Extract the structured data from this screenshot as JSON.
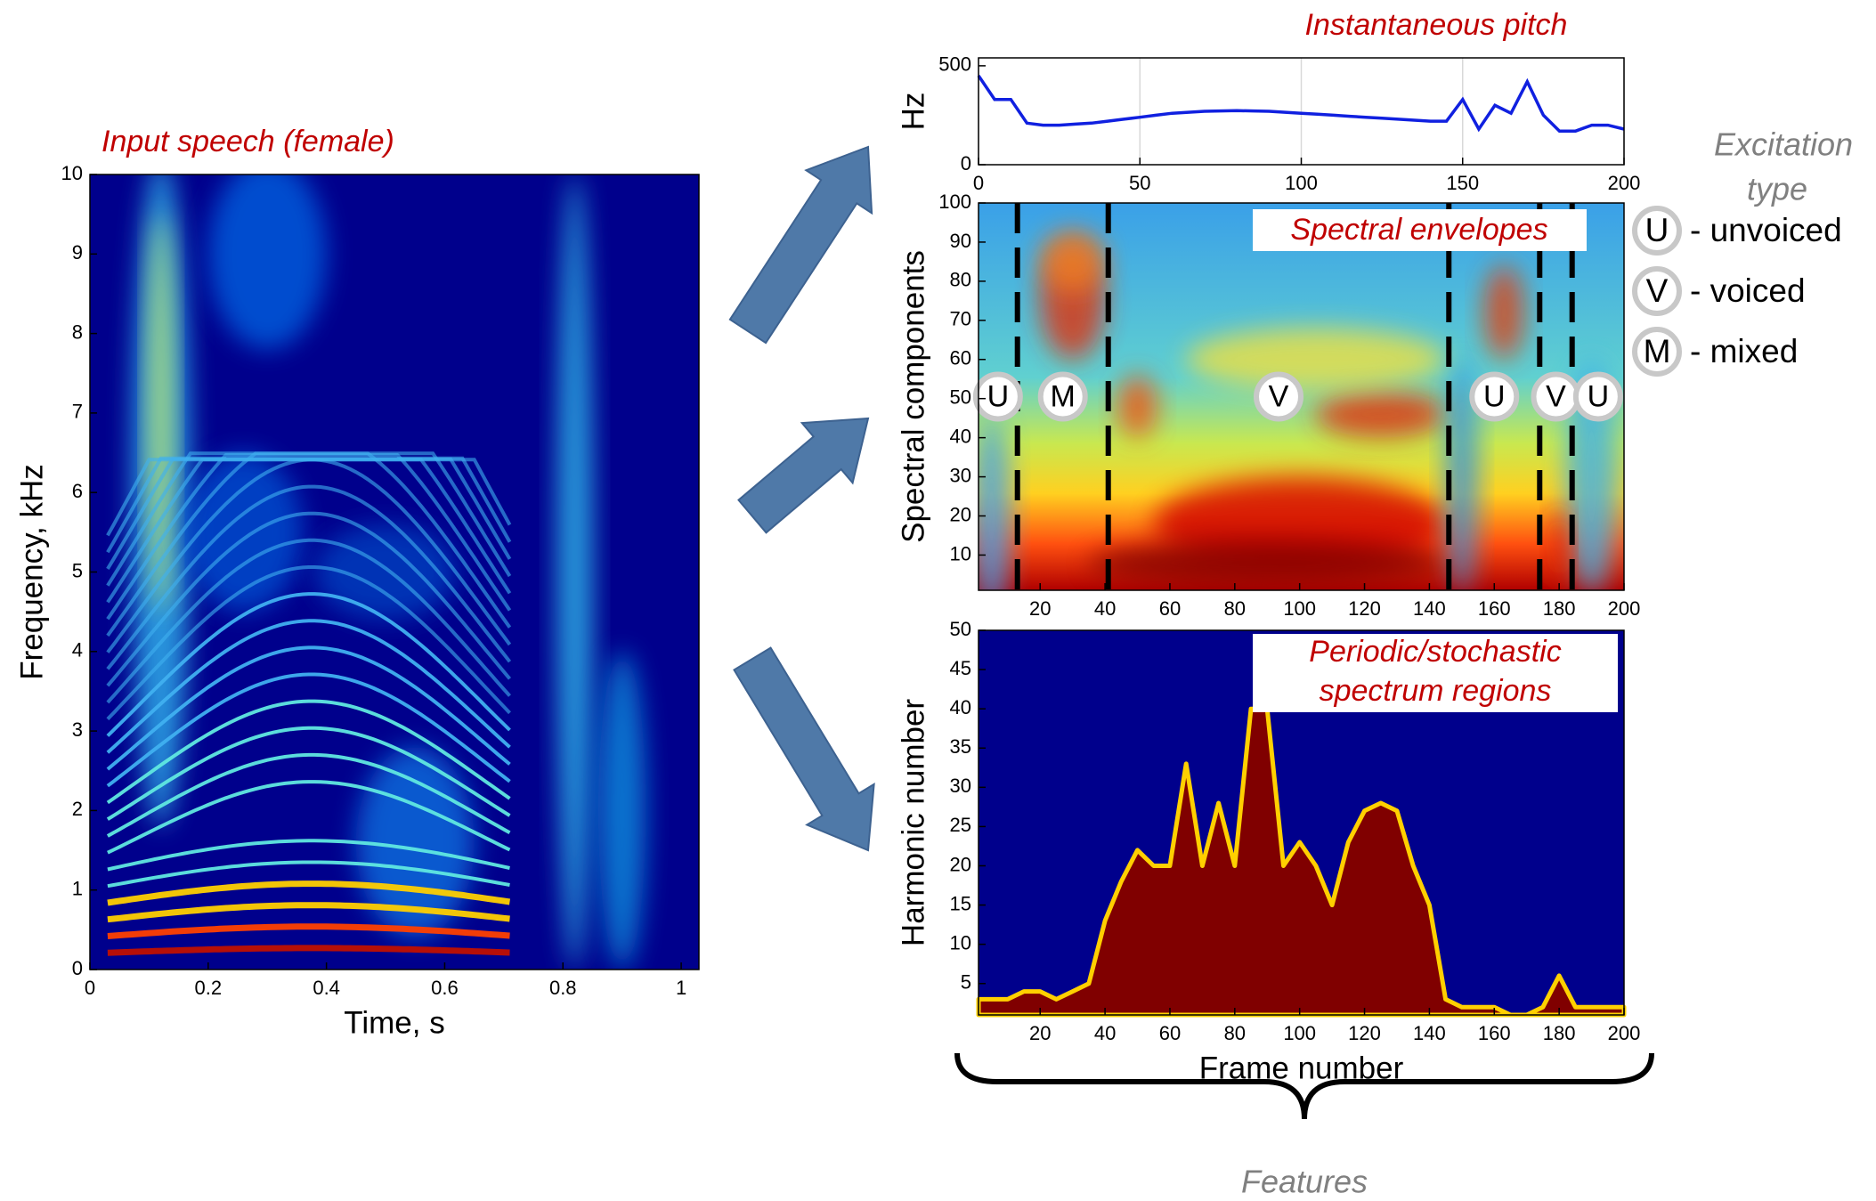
{
  "chart_data": [
    {
      "type": "heatmap",
      "title": "Input speech (female)",
      "xlabel": "Time, s",
      "ylabel": "Frequency, kHz",
      "xlim": [
        0,
        1.03
      ],
      "xticks": [
        0,
        0.2,
        0.4,
        0.6,
        0.8,
        1
      ],
      "ylim": [
        0,
        10
      ],
      "yticks": [
        0,
        1,
        2,
        3,
        4,
        5,
        6,
        7,
        8,
        9,
        10
      ]
    },
    {
      "type": "line",
      "title": "Instantaneous pitch",
      "ylabel": "Hz",
      "xlim": [
        0,
        200
      ],
      "xticks": [
        0,
        50,
        100,
        150,
        200
      ],
      "ylim": [
        0,
        540
      ],
      "yticks": [
        0,
        500
      ],
      "grid": "x",
      "x": [
        0,
        5,
        10,
        15,
        20,
        25,
        30,
        35,
        40,
        45,
        50,
        55,
        60,
        65,
        70,
        75,
        80,
        85,
        90,
        95,
        100,
        105,
        110,
        115,
        120,
        125,
        130,
        135,
        140,
        145,
        150,
        155,
        160,
        165,
        170,
        175,
        180,
        185,
        190,
        195,
        200
      ],
      "series": [
        {
          "color": "#1020e0",
          "values": [
            450,
            330,
            330,
            210,
            200,
            200,
            205,
            210,
            220,
            230,
            240,
            250,
            260,
            265,
            270,
            272,
            273,
            272,
            270,
            265,
            260,
            255,
            250,
            245,
            240,
            235,
            230,
            225,
            220,
            220,
            330,
            180,
            300,
            260,
            420,
            250,
            170,
            170,
            200,
            200,
            180
          ]
        }
      ]
    },
    {
      "type": "heatmap",
      "title": "Spectral envelopes",
      "ylabel": "Spectral components",
      "xlim": [
        1,
        200
      ],
      "xticks": [
        20,
        40,
        60,
        80,
        100,
        120,
        140,
        160,
        180,
        200
      ],
      "ylim": [
        1,
        100
      ],
      "yticks": [
        10,
        20,
        30,
        40,
        50,
        60,
        70,
        80,
        90,
        100
      ],
      "boundaries": [
        13,
        41,
        146,
        174,
        184
      ],
      "excitation": [
        "U",
        "M",
        "V",
        "U",
        "V",
        "U"
      ]
    },
    {
      "type": "area",
      "title": [
        "Periodic/stochastic",
        "spectrum regions"
      ],
      "xlabel": "Frame number",
      "ylabel": "Harmonic number",
      "xlim": [
        1,
        200
      ],
      "xticks": [
        20,
        40,
        60,
        80,
        100,
        120,
        140,
        160,
        180,
        200
      ],
      "ylim": [
        1,
        50
      ],
      "yticks": [
        5,
        10,
        15,
        20,
        25,
        30,
        35,
        40,
        45,
        50
      ],
      "x": [
        1,
        5,
        10,
        15,
        20,
        25,
        30,
        35,
        40,
        45,
        50,
        55,
        60,
        65,
        70,
        75,
        80,
        85,
        90,
        95,
        100,
        105,
        110,
        115,
        120,
        125,
        130,
        135,
        140,
        145,
        150,
        155,
        160,
        165,
        170,
        175,
        180,
        185,
        190,
        195,
        200
      ],
      "series": [
        {
          "color": "#800000",
          "values": [
            3,
            3,
            3,
            4,
            4,
            3,
            4,
            5,
            13,
            18,
            22,
            20,
            20,
            33,
            20,
            28,
            20,
            40,
            40,
            20,
            23,
            20,
            15,
            23,
            27,
            28,
            27,
            20,
            15,
            3,
            2,
            2,
            2,
            1,
            1,
            2,
            6,
            2,
            2,
            2,
            2
          ]
        }
      ]
    }
  ],
  "legend": {
    "title": [
      "Excitation",
      "type"
    ],
    "items": [
      {
        "symbol": "U",
        "label": "- unvoiced"
      },
      {
        "symbol": "V",
        "label": "- voiced"
      },
      {
        "symbol": "M",
        "label": "- mixed"
      }
    ]
  },
  "footer": "Features"
}
